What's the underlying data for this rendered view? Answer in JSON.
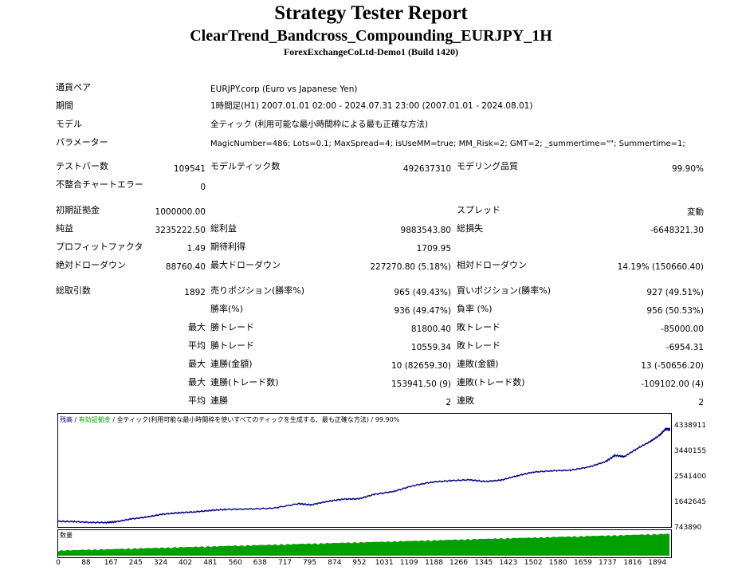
{
  "header": {
    "title": "Strategy Tester Report",
    "ea_name": "ClearTrend_Bandcross_Compounding_EURJPY_1H",
    "server": "ForexExchangeCoLtd-Demo1 (Build 1420)"
  },
  "info": [
    {
      "label": "通貨ペア",
      "value": "EURJPY.corp (Euro vs Japanese Yen)"
    },
    {
      "label": "期間",
      "value": "1時間足(H1) 2007.01.01 02:00 - 2024.07.31 23:00 (2007.01.01 - 2024.08.01)"
    },
    {
      "label": "モデル",
      "value": "全ティック (利用可能な最小時間枠による最も正確な方法)"
    },
    {
      "label": "パラメーター",
      "value": "MagicNumber=486; Lots=0.1; MaxSpread=4; isUseMM=true; MM_Risk=2; GMT=2; _summertime=\"\"; Summertime=1;"
    }
  ],
  "stats": {
    "testbars_label": "テストバー数",
    "testbars": "109541",
    "modelticks_label": "モデルティック数",
    "modelticks": "492637310",
    "quality_label": "モデリング品質",
    "quality": "99.90%",
    "mismatch_label": "不整合チャートエラー",
    "mismatch": "0",
    "deposit_label": "初期証拠金",
    "deposit": "1000000.00",
    "spread_label": "スプレッド",
    "spread": "変動",
    "netprofit_label": "純益",
    "netprofit": "3235222.50",
    "grossprofit_label": "総利益",
    "grossprofit": "9883543.80",
    "grossloss_label": "総損失",
    "grossloss": "-6648321.30",
    "pf_label": "プロフィットファクタ",
    "pf": "1.49",
    "expected_label": "期待利得",
    "expected": "1709.95",
    "absdd_label": "絶対ドローダウン",
    "absdd": "88760.40",
    "maxdd_label": "最大ドローダウン",
    "maxdd": "227270.80 (5.18%)",
    "reldd_label": "相対ドローダウン",
    "reldd": "14.19% (150660.40)",
    "trades_label": "総取引数",
    "trades": "1892",
    "short_label": "売りポジション(勝率%)",
    "short": "965 (49.43%)",
    "long_label": "買いポジション(勝率%)",
    "long": "927 (49.51%)",
    "winrate_label": "勝率(%)",
    "winrate": "936 (49.47%)",
    "lossrate_label": "負率 (%)",
    "lossrate": "956 (50.53%)",
    "max_label": "最大",
    "avg_label": "平均",
    "largestwin_label": "勝トレード",
    "largestwin": "81800.40",
    "largestloss_label": "敗トレード",
    "largestloss": "-85000.00",
    "avgwin_label": "勝トレード",
    "avgwin": "10559.34",
    "avgloss_label": "敗トレード",
    "avgloss": "-6954.31",
    "maxconswin_label": "連勝(金額)",
    "maxconswin": "10 (82659.30)",
    "maxconsloss_label": "連敗(金額)",
    "maxconsloss": "13 (-50656.20)",
    "maxconsprofit_label": "連勝(トレード数)",
    "maxconsprofit": "153941.50 (9)",
    "maxconslossamt_label": "連敗(トレード数)",
    "maxconslossamt": "-109102.00 (4)",
    "avgconswin_label": "連勝",
    "avgconswin": "2",
    "avgconsloss_label": "連敗",
    "avgconsloss": "2"
  },
  "chart_legend": {
    "balance": "残高",
    "equity": "有効証拠金",
    "desc": "全ティック(利用可能な最小時間枠を使いすべてのティックを生成する、最も正確な方法)",
    "quality": "99.90%"
  },
  "volume_label": "数量",
  "colors": {
    "line": "#000080",
    "volume": "#00a000"
  },
  "chart_data": {
    "type": "line",
    "title": "",
    "xlabel": "",
    "ylabel": "",
    "x_ticks": [
      "0",
      "88",
      "167",
      "245",
      "324",
      "402",
      "481",
      "560",
      "638",
      "717",
      "795",
      "874",
      "952",
      "1031",
      "1109",
      "1188",
      "1266",
      "1345",
      "1423",
      "1502",
      "1580",
      "1659",
      "1737",
      "1816",
      "1894"
    ],
    "y_ticks": [
      "4338911",
      "3440155",
      "2541400",
      "1642645",
      "743890"
    ],
    "ylim": [
      743890,
      4338911
    ],
    "xlim": [
      0,
      1935
    ],
    "series": [
      {
        "values": [
          [
            0,
            1000000
          ],
          [
            50,
            990000
          ],
          [
            100,
            960000
          ],
          [
            150,
            955000
          ],
          [
            180,
            980000
          ],
          [
            230,
            1080000
          ],
          [
            280,
            1150000
          ],
          [
            330,
            1250000
          ],
          [
            380,
            1300000
          ],
          [
            430,
            1330000
          ],
          [
            480,
            1380000
          ],
          [
            530,
            1420000
          ],
          [
            600,
            1430000
          ],
          [
            680,
            1460000
          ],
          [
            760,
            1620000
          ],
          [
            800,
            1580000
          ],
          [
            850,
            1700000
          ],
          [
            900,
            1780000
          ],
          [
            950,
            1790000
          ],
          [
            1000,
            1950000
          ],
          [
            1060,
            2050000
          ],
          [
            1120,
            2250000
          ],
          [
            1180,
            2380000
          ],
          [
            1240,
            2430000
          ],
          [
            1300,
            2460000
          ],
          [
            1350,
            2400000
          ],
          [
            1400,
            2450000
          ],
          [
            1450,
            2600000
          ],
          [
            1500,
            2730000
          ],
          [
            1560,
            2780000
          ],
          [
            1620,
            2800000
          ],
          [
            1680,
            2920000
          ],
          [
            1730,
            3100000
          ],
          [
            1760,
            3320000
          ],
          [
            1790,
            3280000
          ],
          [
            1830,
            3560000
          ],
          [
            1870,
            3800000
          ],
          [
            1900,
            4020000
          ],
          [
            1920,
            4250000
          ],
          [
            1935,
            4235000
          ]
        ]
      }
    ]
  }
}
